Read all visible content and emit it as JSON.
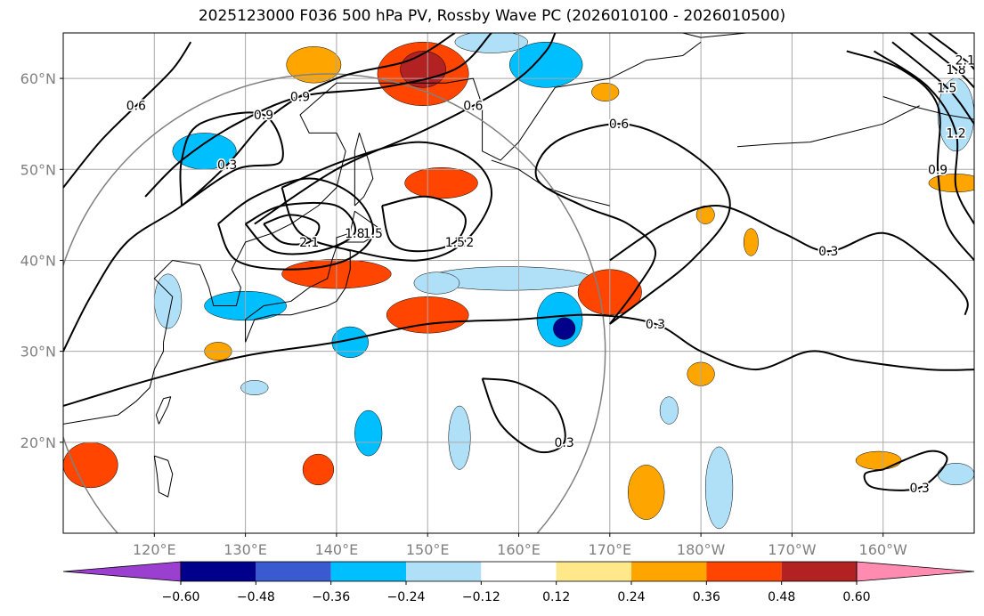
{
  "title": "2025123000 F036 500 hPa PV, Rossby Wave PC (2026010100 - 2026010500)",
  "map": {
    "lon_range": [
      110,
      210
    ],
    "lat_range": [
      10,
      65
    ],
    "lon_ticks": [
      {
        "lon": 120,
        "label": "120°E"
      },
      {
        "lon": 130,
        "label": "130°E"
      },
      {
        "lon": 140,
        "label": "140°E"
      },
      {
        "lon": 150,
        "label": "150°E"
      },
      {
        "lon": 160,
        "label": "160°E"
      },
      {
        "lon": 170,
        "label": "170°E"
      },
      {
        "lon": 180,
        "label": "180°W"
      },
      {
        "lon": 190,
        "label": "170°W"
      },
      {
        "lon": 200,
        "label": "160°W"
      }
    ],
    "lat_ticks": [
      {
        "lat": 20,
        "label": "20°N"
      },
      {
        "lat": 30,
        "label": "30°N"
      },
      {
        "lat": 40,
        "label": "40°N"
      },
      {
        "lat": 50,
        "label": "50°N"
      },
      {
        "lat": 60,
        "label": "60°N"
      }
    ],
    "gridlines": true,
    "tick_label_color": "#808080"
  },
  "range_circle": {
    "center_lon": 139,
    "center_lat": 30,
    "radius_deg": 30.5,
    "color": "#808080"
  },
  "shading": [
    {
      "lon": 149.5,
      "lat": 60.5,
      "rx": 5,
      "ry": 3.5,
      "value": 0.36
    },
    {
      "lon": 149.5,
      "lat": 61,
      "rx": 2.5,
      "ry": 2,
      "value": 0.48
    },
    {
      "lon": 137.5,
      "lat": 61.5,
      "rx": 3,
      "ry": 2,
      "value": 0.24
    },
    {
      "lon": 163,
      "lat": 61.5,
      "rx": 4,
      "ry": 2.5,
      "value": -0.36
    },
    {
      "lon": 157,
      "lat": 64,
      "rx": 4,
      "ry": 1.2,
      "value": -0.24
    },
    {
      "lon": 125.5,
      "lat": 52,
      "rx": 3.5,
      "ry": 2,
      "value": -0.36
    },
    {
      "lon": 151.5,
      "lat": 48.5,
      "rx": 4,
      "ry": 1.7,
      "value": 0.36
    },
    {
      "lon": 140,
      "lat": 38.5,
      "rx": 6,
      "ry": 1.6,
      "value": 0.36
    },
    {
      "lon": 150,
      "lat": 34,
      "rx": 4.5,
      "ry": 2,
      "value": 0.36
    },
    {
      "lon": 130,
      "lat": 35,
      "rx": 4.5,
      "ry": 1.6,
      "value": -0.36
    },
    {
      "lon": 159,
      "lat": 38,
      "rx": 9,
      "ry": 1.3,
      "value": -0.24
    },
    {
      "lon": 164.5,
      "lat": 33.5,
      "rx": 2.5,
      "ry": 3,
      "value": -0.36
    },
    {
      "lon": 165,
      "lat": 32.5,
      "rx": 1.2,
      "ry": 1.2,
      "value": -0.6
    },
    {
      "lon": 170,
      "lat": 36.5,
      "rx": 3.5,
      "ry": 2.5,
      "value": 0.36
    },
    {
      "lon": 176.5,
      "lat": 23.5,
      "rx": 1,
      "ry": 1.5,
      "value": -0.24
    },
    {
      "lon": 121.5,
      "lat": 35.5,
      "rx": 1.5,
      "ry": 3,
      "value": -0.24
    },
    {
      "lon": 141.5,
      "lat": 31,
      "rx": 2,
      "ry": 1.7,
      "value": -0.36
    },
    {
      "lon": 143.5,
      "lat": 21,
      "rx": 1.5,
      "ry": 2.5,
      "value": -0.36
    },
    {
      "lon": 153.5,
      "lat": 20.5,
      "rx": 1.2,
      "ry": 3.5,
      "value": -0.24
    },
    {
      "lon": 182,
      "lat": 15,
      "rx": 1.5,
      "ry": 4.5,
      "value": -0.24
    },
    {
      "lon": 174,
      "lat": 14.5,
      "rx": 2,
      "ry": 3,
      "value": 0.24
    },
    {
      "lon": 180,
      "lat": 27.5,
      "rx": 1.5,
      "ry": 1.3,
      "value": 0.24
    },
    {
      "lon": 113,
      "lat": 17.5,
      "rx": 3,
      "ry": 2.5,
      "value": 0.36
    },
    {
      "lon": 138,
      "lat": 17,
      "rx": 1.7,
      "ry": 1.7,
      "value": 0.36
    },
    {
      "lon": 127,
      "lat": 30,
      "rx": 1.5,
      "ry": 1,
      "value": 0.24
    },
    {
      "lon": 131,
      "lat": 26,
      "rx": 1.5,
      "ry": 0.8,
      "value": -0.24
    },
    {
      "lon": 208,
      "lat": 48.5,
      "rx": 3,
      "ry": 1,
      "value": 0.24
    },
    {
      "lon": 208,
      "lat": 56,
      "rx": 2,
      "ry": 4,
      "value": -0.24
    },
    {
      "lon": 199.5,
      "lat": 18,
      "rx": 2.5,
      "ry": 1,
      "value": 0.24
    },
    {
      "lon": 208,
      "lat": 16.5,
      "rx": 2,
      "ry": 1.2,
      "value": -0.24
    },
    {
      "lon": 180.5,
      "lat": 45,
      "rx": 1,
      "ry": 1,
      "value": 0.24
    },
    {
      "lon": 185.5,
      "lat": 42,
      "rx": 0.8,
      "ry": 1.5,
      "value": 0.24
    },
    {
      "lon": 169.5,
      "lat": 58.5,
      "rx": 1.5,
      "ry": 1,
      "value": 0.24
    },
    {
      "lon": 151,
      "lat": 37.5,
      "rx": 2.5,
      "ry": 1.2,
      "value": -0.24
    }
  ],
  "contours": [
    {
      "level": 0.3,
      "label": "0.3",
      "points": [
        [
          110,
          24
        ],
        [
          120,
          27
        ],
        [
          130,
          29.5
        ],
        [
          140,
          31
        ],
        [
          150,
          33
        ],
        [
          160,
          33.5
        ],
        [
          168,
          34
        ],
        [
          175,
          33
        ],
        [
          180,
          30
        ],
        [
          186,
          28
        ],
        [
          192,
          30
        ],
        [
          197,
          29
        ],
        [
          205,
          28
        ],
        [
          210,
          28
        ]
      ]
    },
    {
      "level": 0.3,
      "label": "0.3",
      "points": [
        [
          110,
          30
        ],
        [
          113,
          36
        ],
        [
          117,
          42
        ],
        [
          123,
          46
        ],
        [
          128,
          50.5
        ],
        [
          133,
          56
        ],
        [
          140,
          60
        ],
        [
          148,
          62
        ],
        [
          153,
          65
        ]
      ]
    },
    {
      "level": 0.3,
      "label": "0.3",
      "points": [
        [
          156,
          27
        ],
        [
          160,
          26.5
        ],
        [
          164,
          24
        ],
        [
          165,
          20
        ],
        [
          162,
          19
        ],
        [
          158,
          22
        ],
        [
          156,
          27
        ]
      ]
    },
    {
      "level": 0.3,
      "label": "0.3",
      "points": [
        [
          170,
          40
        ],
        [
          176,
          44
        ],
        [
          182,
          46
        ],
        [
          189,
          43
        ],
        [
          194,
          41
        ],
        [
          200,
          43
        ],
        [
          205,
          40
        ],
        [
          209,
          36
        ],
        [
          209,
          34
        ]
      ]
    },
    {
      "level": 0.3,
      "label": "0.3",
      "points": [
        [
          200,
          17
        ],
        [
          205,
          19
        ],
        [
          207,
          18
        ],
        [
          204,
          15
        ],
        [
          199,
          15
        ],
        [
          198,
          16.5
        ],
        [
          200,
          17
        ]
      ]
    },
    {
      "level": 0.6,
      "label": "0.6",
      "points": [
        [
          110,
          48
        ],
        [
          114,
          53
        ],
        [
          118,
          57
        ],
        [
          122,
          61
        ],
        [
          124,
          64
        ]
      ]
    },
    {
      "level": 0.6,
      "label": "0.6",
      "points": [
        [
          170,
          33
        ],
        [
          173,
          37
        ],
        [
          175,
          41
        ],
        [
          172,
          44
        ],
        [
          167,
          46
        ],
        [
          162,
          49
        ],
        [
          164,
          53
        ],
        [
          171,
          55
        ],
        [
          177,
          53
        ],
        [
          182,
          49
        ],
        [
          183,
          45
        ],
        [
          179,
          40
        ],
        [
          174,
          36
        ],
        [
          170,
          33
        ]
      ]
    },
    {
      "level": 0.6,
      "label": "0.6",
      "points": [
        [
          131,
          44
        ],
        [
          140,
          50
        ],
        [
          149,
          54
        ],
        [
          155,
          57
        ],
        [
          160,
          60
        ],
        [
          163,
          63
        ],
        [
          164,
          65
        ]
      ]
    },
    {
      "level": 0.9,
      "label": "0.9",
      "points": [
        [
          119,
          47
        ],
        [
          123,
          51
        ],
        [
          129,
          55
        ],
        [
          136,
          58
        ],
        [
          145,
          59
        ],
        [
          153,
          61
        ],
        [
          157,
          65
        ]
      ]
    },
    {
      "level": 0.9,
      "label": "0.9",
      "points": [
        [
          123,
          46
        ],
        [
          129,
          50
        ],
        [
          134,
          51
        ],
        [
          132,
          56
        ],
        [
          125,
          55
        ],
        [
          123,
          51
        ],
        [
          123,
          46
        ]
      ]
    },
    {
      "level": 1.2,
      "label": "1.2",
      "points": [
        [
          134,
          48
        ],
        [
          141,
          51
        ],
        [
          149,
          53
        ],
        [
          155,
          51
        ],
        [
          157,
          47
        ],
        [
          154,
          42
        ],
        [
          149,
          40
        ],
        [
          142,
          41
        ],
        [
          136,
          43
        ],
        [
          134,
          48
        ]
      ]
    },
    {
      "level": 1.5,
      "label": "1.5",
      "points": [
        [
          145,
          46
        ],
        [
          150,
          47
        ],
        [
          154,
          45
        ],
        [
          153,
          42
        ],
        [
          149,
          41
        ],
        [
          146,
          42
        ],
        [
          145,
          46
        ]
      ]
    },
    {
      "level": 1.5,
      "label": "1.5",
      "points": [
        [
          127,
          44
        ],
        [
          131,
          47
        ],
        [
          137,
          49
        ],
        [
          142,
          47
        ],
        [
          144,
          43
        ],
        [
          141,
          40
        ],
        [
          135,
          39
        ],
        [
          129,
          40
        ],
        [
          127,
          44
        ]
      ]
    },
    {
      "level": 1.8,
      "label": "1.8",
      "points": [
        [
          130,
          44
        ],
        [
          134,
          46
        ],
        [
          140,
          46
        ],
        [
          142,
          43
        ],
        [
          138,
          41
        ],
        [
          133,
          41
        ],
        [
          130,
          44
        ]
      ]
    },
    {
      "level": 2.1,
      "label": "2.1",
      "points": [
        [
          132,
          44
        ],
        [
          135,
          45
        ],
        [
          138,
          44
        ],
        [
          137,
          42
        ],
        [
          134,
          42
        ],
        [
          132,
          44
        ]
      ]
    },
    {
      "level": 0.9,
      "label": "0.9",
      "points": [
        [
          196,
          63
        ],
        [
          202,
          61
        ],
        [
          206,
          57
        ],
        [
          206,
          50
        ],
        [
          207,
          44
        ],
        [
          210,
          40
        ]
      ]
    },
    {
      "level": 1.2,
      "label": "1.2",
      "points": [
        [
          199,
          63
        ],
        [
          205,
          59
        ],
        [
          208,
          54
        ],
        [
          208,
          48
        ],
        [
          210,
          44
        ]
      ]
    },
    {
      "level": 1.5,
      "label": "1.5",
      "points": [
        [
          201,
          64
        ],
        [
          207,
          59
        ],
        [
          210,
          55
        ]
      ]
    },
    {
      "level": 1.8,
      "label": "1.8",
      "points": [
        [
          203,
          65
        ],
        [
          208,
          61
        ],
        [
          210,
          59
        ]
      ]
    },
    {
      "level": 2.1,
      "label": "2.1",
      "points": [
        [
          205,
          65
        ],
        [
          209,
          62
        ],
        [
          210,
          61
        ]
      ]
    }
  ],
  "colorbar": {
    "levels": [
      "−0.60",
      "−0.48",
      "−0.36",
      "−0.24",
      "−0.12",
      "0.12",
      "0.24",
      "0.36",
      "0.48",
      "0.60"
    ],
    "colors": [
      "#9a3fd0",
      "#00008b",
      "#3a5ad0",
      "#00bfff",
      "#b0e0f8",
      "#ffffff",
      "#ffe88a",
      "#ffa500",
      "#ff4500",
      "#b22222",
      "#ff8cb0"
    ],
    "extend": "both"
  }
}
